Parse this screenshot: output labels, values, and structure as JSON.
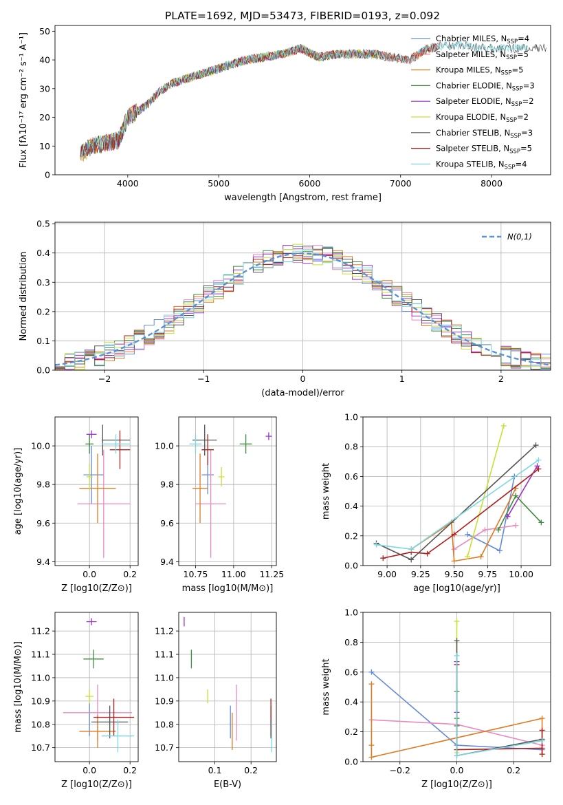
{
  "figure": {
    "title": "PLATE=1692, MJD=53473, FIBERID=0193, z=0.092"
  },
  "chart_data": [
    {
      "id": "spectrum",
      "type": "line",
      "title": "PLATE=1692, MJD=53473, FIBERID=0193, z=0.092",
      "xlabel": "wavelength [Angstrom, rest frame]",
      "ylabel": "Flux [fλ10⁻¹⁷ erg cm⁻² s⁻¹ A⁻¹]",
      "xlim": [
        3200,
        8650
      ],
      "ylim": [
        0,
        52
      ],
      "xticks": [
        4000,
        5000,
        6000,
        7000,
        8000
      ],
      "yticks": [
        0,
        10,
        20,
        30,
        40,
        50
      ],
      "grid": false,
      "legend_position": "top-right",
      "continuum": {
        "x": [
          3480,
          3600,
          3750,
          3900,
          4000,
          4100,
          4200,
          4350,
          4500,
          4700,
          4900,
          5100,
          5300,
          5500,
          5700,
          5900,
          6100,
          6300,
          6500,
          6700,
          6900,
          7100,
          7300,
          7500,
          7700,
          7900,
          8100,
          8300
        ],
        "y": [
          7,
          10,
          11,
          12,
          20,
          22,
          24,
          29,
          32,
          34,
          36,
          38,
          40,
          41,
          42,
          44,
          41,
          42,
          42,
          42,
          41,
          40,
          44,
          45,
          45,
          44,
          44,
          44
        ]
      },
      "series": [
        {
          "name": "Chabrier MILES, N_SSP=4",
          "color": "#6489dc",
          "x_end": 7400
        },
        {
          "name": "Salpeter MILES, N_SSP=5",
          "color": "#e07b7b",
          "x_end": 7420
        },
        {
          "name": "Kroupa MILES, N_SSP=5",
          "color": "#dd7a22",
          "x_end": 7420
        },
        {
          "name": "Chabrier ELODIE, N_SSP=3",
          "color": "#3e8a3e",
          "x_end": 6800
        },
        {
          "name": "Salpeter ELODIE, N_SSP=2",
          "color": "#9a32c8",
          "x_end": 6800
        },
        {
          "name": "Kroupa ELODIE, N_SSP=2",
          "color": "#c8e032",
          "x_end": 6800
        },
        {
          "name": "Chabrier STELIB, N_SSP=3",
          "color": "#555555",
          "x_end": 8600
        },
        {
          "name": "Salpeter STELIB, N_SSP=5",
          "color": "#b01e1e",
          "x_end": 7420
        },
        {
          "name": "Kroupa STELIB, N_SSP=4",
          "color": "#7ad8e0",
          "x_end": 8400
        }
      ],
      "legend_labels": [
        {
          "main": "Chabrier MILES, N",
          "sub": "SSP",
          "tail": "=4"
        },
        {
          "main": "Salpeter MILES, N",
          "sub": "SSP",
          "tail": "=5"
        },
        {
          "main": "Kroupa MILES, N",
          "sub": "SSP",
          "tail": "=5"
        },
        {
          "main": "Chabrier ELODIE, N",
          "sub": "SSP",
          "tail": "=3"
        },
        {
          "main": "Salpeter ELODIE, N",
          "sub": "SSP",
          "tail": "=2"
        },
        {
          "main": "Kroupa ELODIE, N",
          "sub": "SSP",
          "tail": "=2"
        },
        {
          "main": "Chabrier STELIB, N",
          "sub": "SSP",
          "tail": "=3"
        },
        {
          "main": "Salpeter STELIB, N",
          "sub": "SSP",
          "tail": "=5"
        },
        {
          "main": "Kroupa STELIB, N",
          "sub": "SSP",
          "tail": "=4"
        }
      ]
    },
    {
      "id": "residuals",
      "type": "line",
      "xlabel": "(data-model)/error",
      "ylabel": "Normed distribution",
      "xlim": [
        -2.5,
        2.5
      ],
      "ylim": [
        0,
        0.505
      ],
      "xticks": [
        -2,
        -1,
        0,
        1,
        2
      ],
      "xtick_labels": [
        "−2",
        "−1",
        "0",
        "1",
        "2"
      ],
      "yticks": [
        0,
        0.1,
        0.2,
        0.3,
        0.4,
        0.5
      ],
      "ytick_labels": [
        "0.0",
        "0.1",
        "0.2",
        "0.3",
        "0.4",
        "0.5"
      ],
      "grid": true,
      "legend_position": "top-right",
      "gaussian": {
        "name": "N(0,1)",
        "color": "#5b8fd9"
      },
      "bins": {
        "start": -2.5,
        "width": 0.1
      },
      "colors": [
        "#6489dc",
        "#e889c0",
        "#dd7a22",
        "#3e8a3e",
        "#9a32c8",
        "#c8e032",
        "#555555",
        "#b01e1e",
        "#7ad8e0"
      ]
    },
    {
      "id": "age_vs_Z",
      "type": "scatter",
      "xlabel": "Z [log10(Z/Z⊙)]",
      "ylabel": "age [log10(age/yr)]",
      "xlim": [
        -0.17,
        0.24
      ],
      "ylim": [
        9.38,
        10.15
      ],
      "xticks": [
        0.0,
        0.2
      ],
      "xtick_labels": [
        "0.0",
        "0.2"
      ],
      "yticks": [
        9.4,
        9.6,
        9.8,
        10.0
      ],
      "ytick_labels": [
        "9.4",
        "9.6",
        "9.8",
        "10.0"
      ],
      "grid": true,
      "points": [
        {
          "x": 0.01,
          "y": 9.85,
          "xerr": 0.04,
          "yerr": 0.15,
          "color": "#6489dc"
        },
        {
          "x": 0.06,
          "y": 9.85,
          "xerr": 0.0,
          "yerr": 0.0,
          "color": "#6489dc"
        },
        {
          "x": 0.07,
          "y": 9.7,
          "xerr": 0.13,
          "yerr": 0.28,
          "color": "#e889c0"
        },
        {
          "x": 0.04,
          "y": 9.78,
          "xerr": 0.09,
          "yerr": 0.18,
          "color": "#dd7a22"
        },
        {
          "x": 0.0,
          "y": 10.01,
          "xerr": 0.02,
          "yerr": 0.05,
          "color": "#3e8a3e"
        },
        {
          "x": 0.01,
          "y": 10.06,
          "xerr": 0.025,
          "yerr": 0.02,
          "color": "#9a32c8"
        },
        {
          "x": 0.0,
          "y": 9.84,
          "xerr": 0.015,
          "yerr": 0.07,
          "color": "#c8e032"
        },
        {
          "x": 0.13,
          "y": 10.03,
          "xerr": 0.07,
          "yerr": 0.0,
          "color": "#555555"
        },
        {
          "x": 0.065,
          "y": 10.03,
          "xerr": 0.0,
          "yerr": 0.08,
          "color": "#555555"
        },
        {
          "x": 0.15,
          "y": 9.98,
          "xerr": 0.05,
          "yerr": 0.1,
          "color": "#b01e1e"
        },
        {
          "x": 0.13,
          "y": 10.01,
          "xerr": 0.07,
          "yerr": 0.05,
          "color": "#7ad8e0"
        }
      ]
    },
    {
      "id": "age_vs_mass",
      "type": "scatter",
      "xlabel": "mass [log10(M/M⊙)]",
      "xlim": [
        10.64,
        11.28
      ],
      "ylim": [
        9.38,
        10.15
      ],
      "xticks": [
        10.75,
        11.0,
        11.25
      ],
      "xtick_labels": [
        "10.75",
        "11.00",
        "11.25"
      ],
      "yticks": [
        9.4,
        9.6,
        9.8,
        10.0
      ],
      "ytick_labels": [
        "9.4",
        "9.6",
        "9.8",
        "10.0"
      ],
      "grid": true,
      "points": [
        {
          "x": 10.83,
          "y": 9.85,
          "xerr": 0.04,
          "yerr": 0.1,
          "color": "#6489dc"
        },
        {
          "x": 10.85,
          "y": 9.7,
          "xerr": 0.1,
          "yerr": 0.28,
          "color": "#e889c0"
        },
        {
          "x": 10.78,
          "y": 9.78,
          "xerr": 0.05,
          "yerr": 0.18,
          "color": "#dd7a22"
        },
        {
          "x": 11.08,
          "y": 10.01,
          "xerr": 0.04,
          "yerr": 0.05,
          "color": "#3e8a3e"
        },
        {
          "x": 11.23,
          "y": 10.05,
          "xerr": 0.02,
          "yerr": 0.02,
          "color": "#9a32c8"
        },
        {
          "x": 10.92,
          "y": 9.84,
          "xerr": 0.02,
          "yerr": 0.05,
          "color": "#c8e032"
        },
        {
          "x": 10.81,
          "y": 10.03,
          "xerr": 0.08,
          "yerr": 0.08,
          "color": "#555555"
        },
        {
          "x": 10.83,
          "y": 9.98,
          "xerr": 0.04,
          "yerr": 0.08,
          "color": "#b01e1e"
        },
        {
          "x": 10.75,
          "y": 10.01,
          "xerr": 0.04,
          "yerr": 0.05,
          "color": "#7ad8e0"
        }
      ]
    },
    {
      "id": "weight_vs_age",
      "type": "line",
      "xlabel": "age [log10(age/yr)]",
      "ylabel": "mass weight",
      "xlim": [
        8.82,
        10.22
      ],
      "ylim": [
        0,
        1.0
      ],
      "xticks": [
        9.0,
        9.25,
        9.5,
        9.75,
        10.0
      ],
      "xtick_labels": [
        "9.00",
        "9.25",
        "9.50",
        "9.75",
        "10.00"
      ],
      "yticks": [
        0,
        0.2,
        0.4,
        0.6,
        0.8,
        1.0
      ],
      "ytick_labels": [
        "0.0",
        "0.2",
        "0.4",
        "0.6",
        "0.8",
        "1.0"
      ],
      "grid": true,
      "series": [
        {
          "color": "#6489dc",
          "x": [
            9.6,
            9.84,
            9.95
          ],
          "y": [
            0.21,
            0.1,
            0.6
          ]
        },
        {
          "color": "#e889c0",
          "x": [
            9.5,
            9.73,
            9.96
          ],
          "y": [
            0.11,
            0.24,
            0.27
          ]
        },
        {
          "color": "#dd7a22",
          "x": [
            9.18,
            9.48,
            9.5,
            9.7,
            9.96
          ],
          "y": [
            0.11,
            0.29,
            0.03,
            0.06,
            0.52
          ]
        },
        {
          "color": "#3e8a3e",
          "x": [
            9.83,
            9.96,
            10.15
          ],
          "y": [
            0.24,
            0.47,
            0.29
          ]
        },
        {
          "color": "#9a32c8",
          "x": [
            9.9,
            10.12
          ],
          "y": [
            0.33,
            0.67
          ]
        },
        {
          "color": "#c8e032",
          "x": [
            9.6,
            9.87
          ],
          "y": [
            0.06,
            0.94
          ]
        },
        {
          "color": "#555555",
          "x": [
            8.92,
            9.18,
            10.11
          ],
          "y": [
            0.15,
            0.04,
            0.81
          ]
        },
        {
          "color": "#b01e1e",
          "x": [
            8.97,
            9.18,
            9.3,
            9.5,
            10.13
          ],
          "y": [
            0.05,
            0.09,
            0.08,
            0.21,
            0.65
          ]
        },
        {
          "color": "#7ad8e0",
          "x": [
            8.92,
            9.18,
            10.13
          ],
          "y": [
            0.14,
            0.11,
            0.71
          ]
        }
      ]
    },
    {
      "id": "mass_vs_Z",
      "type": "scatter",
      "xlabel": "Z [log10(Z/Z⊙)]",
      "ylabel": "mass [log10(M/M⊙)]",
      "xlim": [
        -0.17,
        0.24
      ],
      "ylim": [
        10.64,
        11.28
      ],
      "xticks": [
        0.0,
        0.2
      ],
      "xtick_labels": [
        "0.0",
        "0.2"
      ],
      "yticks": [
        10.7,
        10.8,
        10.9,
        11.0,
        11.1,
        11.2
      ],
      "ytick_labels": [
        "10.7",
        "10.8",
        "10.9",
        "11.0",
        "11.1",
        "11.2"
      ],
      "grid": true,
      "points": [
        {
          "x": 0.0,
          "y": 10.82,
          "xerr": 0.0,
          "yerr": 0.07,
          "color": "#6489dc"
        },
        {
          "x": 0.04,
          "y": 10.85,
          "xerr": 0.17,
          "yerr": 0.12,
          "color": "#e889c0"
        },
        {
          "x": 0.04,
          "y": 10.77,
          "xerr": 0.09,
          "yerr": 0.07,
          "color": "#dd7a22"
        },
        {
          "x": 0.02,
          "y": 11.08,
          "xerr": 0.05,
          "yerr": 0.04,
          "color": "#3e8a3e"
        },
        {
          "x": 0.01,
          "y": 11.24,
          "xerr": 0.025,
          "yerr": 0.015,
          "color": "#9a32c8"
        },
        {
          "x": 0.0,
          "y": 10.92,
          "xerr": 0.02,
          "yerr": 0.03,
          "color": "#c8e032"
        },
        {
          "x": 0.1,
          "y": 10.81,
          "xerr": 0.09,
          "yerr": 0.07,
          "color": "#555555"
        },
        {
          "x": 0.12,
          "y": 10.83,
          "xerr": 0.1,
          "yerr": 0.08,
          "color": "#b01e1e"
        },
        {
          "x": 0.14,
          "y": 10.75,
          "xerr": 0.08,
          "yerr": 0.07,
          "color": "#7ad8e0"
        }
      ]
    },
    {
      "id": "mass_vs_ebv",
      "type": "scatter",
      "xlabel": "E(B-V)",
      "xlim": [
        0.0,
        0.27
      ],
      "ylim": [
        10.64,
        11.28
      ],
      "xticks": [
        0.1,
        0.2
      ],
      "xtick_labels": [
        "0.1",
        "0.2"
      ],
      "yticks": [
        10.7,
        10.8,
        10.9,
        11.0,
        11.1,
        11.2
      ],
      "ytick_labels": [
        "10.7",
        "10.8",
        "10.9",
        "11.0",
        "11.1",
        "11.2"
      ],
      "grid": true,
      "points": [
        {
          "x": 0.143,
          "y": 10.81,
          "yerr": 0.07,
          "color": "#6489dc"
        },
        {
          "x": 0.16,
          "y": 10.85,
          "yerr": 0.12,
          "color": "#e889c0"
        },
        {
          "x": 0.148,
          "y": 10.77,
          "yerr": 0.08,
          "color": "#dd7a22"
        },
        {
          "x": 0.035,
          "y": 11.08,
          "yerr": 0.04,
          "color": "#3e8a3e"
        },
        {
          "x": 0.015,
          "y": 11.24,
          "yerr": 0.02,
          "color": "#9a32c8"
        },
        {
          "x": 0.08,
          "y": 10.92,
          "yerr": 0.03,
          "color": "#c8e032"
        },
        {
          "x": 0.255,
          "y": 10.81,
          "yerr": 0.07,
          "color": "#555555"
        },
        {
          "x": 0.255,
          "y": 10.83,
          "yerr": 0.08,
          "color": "#b01e1e"
        },
        {
          "x": 0.257,
          "y": 10.75,
          "yerr": 0.07,
          "color": "#7ad8e0"
        }
      ]
    },
    {
      "id": "weight_vs_Z",
      "type": "line",
      "xlabel": "Z [log10(Z/Z⊙)]",
      "ylabel": "mass weight",
      "xlim": [
        -0.33,
        0.33
      ],
      "ylim": [
        0,
        1.0
      ],
      "xticks": [
        -0.2,
        0.0,
        0.2
      ],
      "xtick_labels": [
        "−0.2",
        "0.0",
        "0.2"
      ],
      "yticks": [
        0,
        0.2,
        0.4,
        0.6,
        0.8,
        1.0
      ],
      "ytick_labels": [
        "0.0",
        "0.2",
        "0.4",
        "0.6",
        "0.8",
        "1.0"
      ],
      "grid": true,
      "series": [
        {
          "color": "#6489dc",
          "x": [
            -0.3,
            0.0,
            0.3
          ],
          "y": [
            0.6,
            0.11,
            0.08
          ]
        },
        {
          "color": "#e889c0",
          "x": [
            -0.3,
            0.0,
            0.3
          ],
          "y": [
            0.28,
            0.25,
            0.11
          ]
        },
        {
          "color": "#dd7a22",
          "x": [
            -0.3,
            -0.3,
            -0.3,
            0.3,
            0.3
          ],
          "y": [
            0.52,
            0.11,
            0.03,
            0.29,
            0.05
          ]
        },
        {
          "color": "#3e8a3e",
          "x": [
            0.0,
            0.0,
            0.0
          ],
          "y": [
            0.47,
            0.24,
            0.29
          ]
        },
        {
          "color": "#9a32c8",
          "x": [
            0.0,
            0.0
          ],
          "y": [
            0.67,
            0.33
          ]
        },
        {
          "color": "#c8e032",
          "x": [
            0.0,
            0.0
          ],
          "y": [
            0.94,
            0.06
          ]
        },
        {
          "color": "#555555",
          "x": [
            0.0,
            0.0,
            0.3
          ],
          "y": [
            0.81,
            0.04,
            0.15
          ]
        },
        {
          "color": "#b01e1e",
          "x": [
            0.0,
            0.0,
            0.3,
            0.3,
            0.3
          ],
          "y": [
            0.65,
            0.08,
            0.09,
            0.05,
            0.21
          ]
        },
        {
          "color": "#7ad8e0",
          "x": [
            0.0,
            0.0,
            0.3
          ],
          "y": [
            0.71,
            0.04,
            0.14
          ]
        }
      ]
    }
  ]
}
